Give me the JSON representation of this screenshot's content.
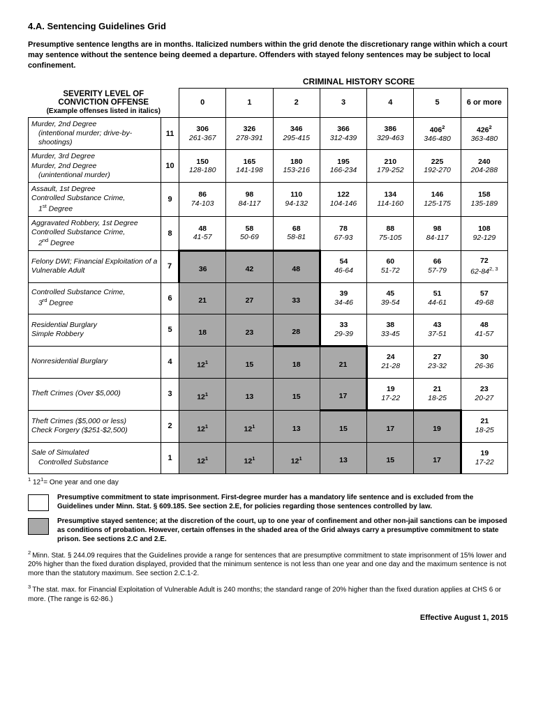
{
  "title": "4.A.  Sentencing Guidelines Grid",
  "intro": "Presumptive sentence lengths are in months. Italicized numbers within the grid denote the discretionary range within which a court may sentence without the sentence being deemed a departure. Offenders with stayed felony sentences may be subject to local confinement.",
  "historyHeader": "CRIMINAL HISTORY SCORE",
  "severityHeader": {
    "l1": "SEVERITY LEVEL OF",
    "l2": "CONVICTION OFFENSE",
    "l3": "(Example offenses listed in italics)"
  },
  "cols": [
    "0",
    "1",
    "2",
    "3",
    "4",
    "5",
    "6 or more"
  ],
  "rows": [
    {
      "level": "11",
      "offense": "Murder, 2nd Degree",
      "sub": "(intentional murder; drive-by-shootings)",
      "cells": [
        {
          "p": "306",
          "r": "261-367"
        },
        {
          "p": "326",
          "r": "278-391"
        },
        {
          "p": "346",
          "r": "295-415"
        },
        {
          "p": "366",
          "r": "312-439"
        },
        {
          "p": "386",
          "r": "329-463"
        },
        {
          "p": "406",
          "r": "346-480",
          "psup": "2"
        },
        {
          "p": "426",
          "r": "363-480",
          "psup": "2"
        }
      ]
    },
    {
      "level": "10",
      "offense": "Murder, 3rd Degree<br>Murder, 2nd Degree",
      "sub": "(unintentional murder)",
      "cells": [
        {
          "p": "150",
          "r": "128-180"
        },
        {
          "p": "165",
          "r": "141-198"
        },
        {
          "p": "180",
          "r": "153-216"
        },
        {
          "p": "195",
          "r": "166-234"
        },
        {
          "p": "210",
          "r": "179-252"
        },
        {
          "p": "225",
          "r": "192-270"
        },
        {
          "p": "240",
          "r": "204-288"
        }
      ]
    },
    {
      "level": "9",
      "offense": "Assault, 1st Degree<br>Controlled Substance Crime,",
      "sub": "1<sup>st</sup> Degree",
      "cells": [
        {
          "p": "86",
          "r": "74-103"
        },
        {
          "p": "98",
          "r": "84-117"
        },
        {
          "p": "110",
          "r": "94-132"
        },
        {
          "p": "122",
          "r": "104-146"
        },
        {
          "p": "134",
          "r": "114-160"
        },
        {
          "p": "146",
          "r": "125-175"
        },
        {
          "p": "158",
          "r": "135-189"
        }
      ]
    },
    {
      "level": "8",
      "offense": "Aggravated Robbery, 1st Degree<br>Controlled Substance Crime,",
      "sub": "2<sup>nd</sup> Degree",
      "cells": [
        {
          "p": "48",
          "r": "41-57"
        },
        {
          "p": "58",
          "r": "50-69"
        },
        {
          "p": "68",
          "r": "58-81"
        },
        {
          "p": "78",
          "r": "67-93"
        },
        {
          "p": "88",
          "r": "75-105"
        },
        {
          "p": "98",
          "r": "84-117"
        },
        {
          "p": "108",
          "r": "92-129"
        }
      ]
    },
    {
      "level": "7",
      "offense": "Felony DWI; Financial Exploitation of a Vulnerable Adult",
      "sub": "",
      "cells": [
        {
          "p": "36",
          "shaded": true
        },
        {
          "p": "42",
          "shaded": true
        },
        {
          "p": "48",
          "shaded": true
        },
        {
          "p": "54",
          "r": "46-64"
        },
        {
          "p": "60",
          "r": "51-72"
        },
        {
          "p": "66",
          "r": "57-79"
        },
        {
          "p": "72",
          "r": "62-84",
          "rsup": "2, 3"
        }
      ]
    },
    {
      "level": "6",
      "offense": "Controlled Substance Crime,",
      "sub": "3<sup>rd</sup> Degree",
      "cells": [
        {
          "p": "21",
          "shaded": true
        },
        {
          "p": "27",
          "shaded": true
        },
        {
          "p": "33",
          "shaded": true
        },
        {
          "p": "39",
          "r": "34-46"
        },
        {
          "p": "45",
          "r": "39-54"
        },
        {
          "p": "51",
          "r": "44-61"
        },
        {
          "p": "57",
          "r": "49-68"
        }
      ]
    },
    {
      "level": "5",
      "offense": "Residential Burglary<br>Simple Robbery",
      "sub": "",
      "cells": [
        {
          "p": "18",
          "shaded": true
        },
        {
          "p": "23",
          "shaded": true
        },
        {
          "p": "28",
          "shaded": true
        },
        {
          "p": "33",
          "r": "29-39"
        },
        {
          "p": "38",
          "r": "33-45"
        },
        {
          "p": "43",
          "r": "37-51"
        },
        {
          "p": "48",
          "r": "41-57"
        }
      ]
    },
    {
      "level": "4",
      "offense": "Nonresidential Burglary",
      "sub": "",
      "cells": [
        {
          "p": "12",
          "psup": "1",
          "shaded": true
        },
        {
          "p": "15",
          "shaded": true
        },
        {
          "p": "18",
          "shaded": true
        },
        {
          "p": "21",
          "shaded": true
        },
        {
          "p": "24",
          "r": "21-28"
        },
        {
          "p": "27",
          "r": "23-32"
        },
        {
          "p": "30",
          "r": "26-36"
        }
      ]
    },
    {
      "level": "3",
      "offense": "Theft Crimes  (Over $5,000)",
      "sub": "",
      "cells": [
        {
          "p": "12",
          "psup": "1",
          "shaded": true
        },
        {
          "p": "13",
          "shaded": true
        },
        {
          "p": "15",
          "shaded": true
        },
        {
          "p": "17",
          "shaded": true
        },
        {
          "p": "19",
          "r": "17-22"
        },
        {
          "p": "21",
          "r": "18-25"
        },
        {
          "p": "23",
          "r": "20-27"
        }
      ]
    },
    {
      "level": "2",
      "offense": "Theft Crimes  ($5,000 or less)<br>Check Forgery  ($251-$2,500)",
      "sub": "",
      "cells": [
        {
          "p": "12",
          "psup": "1",
          "shaded": true
        },
        {
          "p": "12",
          "psup": "1",
          "shaded": true
        },
        {
          "p": "13",
          "shaded": true
        },
        {
          "p": "15",
          "shaded": true
        },
        {
          "p": "17",
          "shaded": true
        },
        {
          "p": "19",
          "shaded": true
        },
        {
          "p": "21",
          "r": "18-25"
        }
      ]
    },
    {
      "level": "1",
      "offense": "Sale of Simulated",
      "sub": "Controlled Substance",
      "cells": [
        {
          "p": "12",
          "psup": "1",
          "shaded": true
        },
        {
          "p": "12",
          "psup": "1",
          "shaded": true
        },
        {
          "p": "12",
          "psup": "1",
          "shaded": true
        },
        {
          "p": "13",
          "shaded": true
        },
        {
          "p": "15",
          "shaded": true
        },
        {
          "p": "17",
          "shaded": true
        },
        {
          "p": "19",
          "r": "17-22"
        }
      ]
    }
  ],
  "dispositionBorders": {
    "7": {
      "0": [
        "db-top",
        "db-left"
      ],
      "1": [
        "db-top"
      ],
      "2": [
        "db-top",
        "db-right"
      ]
    },
    "6": {
      "2": [
        "db-right"
      ]
    },
    "5": {
      "2": [
        "db-right",
        "db-bottom"
      ],
      "3": [
        "db-bottom"
      ]
    },
    "4": {
      "3": [
        "db-right"
      ]
    },
    "3": {
      "3": [
        "db-right",
        "db-bottom"
      ],
      "4": [
        "db-bottom"
      ],
      "5": [
        "db-bottom"
      ]
    },
    "2": {
      "5": [
        "db-right"
      ]
    },
    "1": {
      "5": [
        "db-right"
      ]
    }
  },
  "footnote1": "12",
  "footnote1sup": "1",
  "footnote1rest": "= One year and one day",
  "legend": {
    "white": "Presumptive commitment to state imprisonment. First-degree murder has a mandatory life sentence and is excluded from the Guidelines under Minn. Stat. § 609.185. See section 2.E, for policies regarding those sentences controlled by law.",
    "shaded": "Presumptive stayed sentence; at the discretion of the court, up to one year of confinement and other non-jail sanctions can be imposed as conditions of probation. However, certain offenses in the shaded area of the Grid always carry a presumptive commitment to state prison. See sections 2.C and 2.E."
  },
  "fn2": "Minn. Stat. § 244.09 requires that the Guidelines provide a range for sentences that are presumptive commitment to state imprisonment of 15% lower and 20% higher than the fixed duration displayed, provided that the minimum sentence is not less than one year and one day and the maximum sentence is not more than the statutory maximum. See section 2.C.1-2.",
  "fn3": "The stat. max. for Financial Exploitation of Vulnerable Adult is 240 months; the standard range of 20% higher than the fixed duration applies at CHS 6 or more.  (The range is 62-86.)",
  "effective": "Effective August 1, 2015"
}
